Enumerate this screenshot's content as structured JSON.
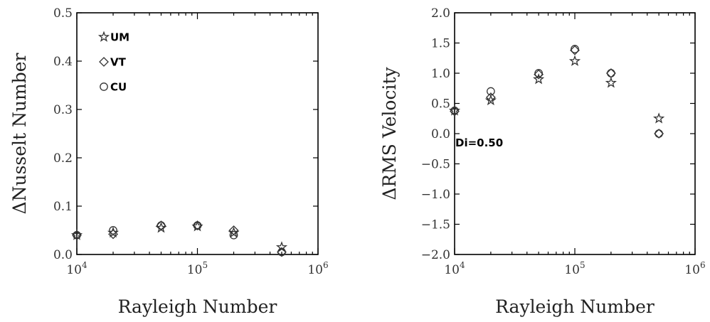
{
  "chart_data": [
    {
      "type": "scatter",
      "xlabel": "Rayleigh Number",
      "ylabel": "ΔNusselt Number",
      "xscale": "log",
      "xlim": [
        10000,
        1000000
      ],
      "ylim": [
        0,
        0.5
      ],
      "xticks": [
        10000,
        100000,
        1000000
      ],
      "xtick_labels": [
        {
          "base": "10",
          "exp": "4"
        },
        {
          "base": "10",
          "exp": "5"
        },
        {
          "base": "10",
          "exp": "6"
        }
      ],
      "yticks": [
        0,
        0.1,
        0.2,
        0.3,
        0.4,
        0.5
      ],
      "ytick_labels": [
        "0.0",
        "0.1",
        "0.2",
        "0.3",
        "0.4",
        "0.5"
      ],
      "legend_position": "top-left",
      "series": [
        {
          "name": "UM",
          "marker": "star",
          "x": [
            10000,
            20000,
            50000,
            100000,
            200000,
            500000
          ],
          "y": [
            0.04,
            0.045,
            0.055,
            0.058,
            0.045,
            0.015
          ]
        },
        {
          "name": "VT",
          "marker": "diamond",
          "x": [
            10000,
            20000,
            50000,
            100000,
            200000,
            500000
          ],
          "y": [
            0.04,
            0.042,
            0.06,
            0.06,
            0.05,
            0.005
          ]
        },
        {
          "name": "CU",
          "marker": "circle",
          "x": [
            10000,
            20000,
            50000,
            100000,
            200000,
            500000
          ],
          "y": [
            0.04,
            0.05,
            0.06,
            0.06,
            0.04,
            0.005
          ]
        }
      ],
      "annotations": []
    },
    {
      "type": "scatter",
      "xlabel": "Rayleigh Number",
      "ylabel": "ΔRMS Velocity",
      "xscale": "log",
      "xlim": [
        10000,
        1000000
      ],
      "ylim": [
        -2.0,
        2.0
      ],
      "xticks": [
        10000,
        100000,
        1000000
      ],
      "xtick_labels": [
        {
          "base": "10",
          "exp": "4"
        },
        {
          "base": "10",
          "exp": "5"
        },
        {
          "base": "10",
          "exp": "6"
        }
      ],
      "yticks": [
        -2.0,
        -1.5,
        -1.0,
        -0.5,
        0.0,
        0.5,
        1.0,
        1.5,
        2.0
      ],
      "ytick_labels": [
        "−2.0",
        "−1.5",
        "−1.0",
        "−0.5",
        "0.0",
        "0.5",
        "1.0",
        "1.5",
        "2.0"
      ],
      "series": [
        {
          "name": "UM",
          "marker": "star",
          "x": [
            10000,
            20000,
            50000,
            100000,
            200000,
            500000
          ],
          "y": [
            0.38,
            0.55,
            0.9,
            1.2,
            0.84,
            0.25
          ]
        },
        {
          "name": "VT",
          "marker": "diamond",
          "x": [
            10000,
            20000,
            50000,
            100000,
            200000,
            500000
          ],
          "y": [
            0.37,
            0.6,
            0.98,
            1.38,
            1.0,
            0.0
          ]
        },
        {
          "name": "CU",
          "marker": "circle",
          "x": [
            10000,
            20000,
            50000,
            100000,
            200000,
            500000
          ],
          "y": [
            0.38,
            0.7,
            1.0,
            1.4,
            1.0,
            0.0
          ]
        }
      ],
      "annotations": [
        {
          "text": "Di=0.50",
          "x": 10000,
          "y": -0.15
        }
      ]
    }
  ]
}
